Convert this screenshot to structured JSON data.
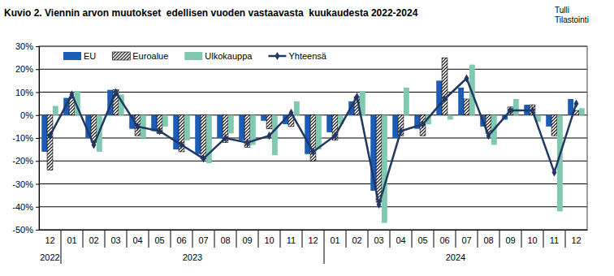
{
  "chart_data": {
    "type": "bar",
    "title": "Kuvio 2. Viennin arvon muutokset  edellisen vuoden vastaavasta  kuukaudesta 2022-2024",
    "source": [
      "Tulli",
      "Tilastointi"
    ],
    "categories": [
      "12",
      "01",
      "02",
      "03",
      "04",
      "05",
      "06",
      "07",
      "08",
      "09",
      "10",
      "11",
      "12",
      "01",
      "02",
      "03",
      "04",
      "05",
      "06",
      "07",
      "08",
      "09",
      "10",
      "11",
      "12"
    ],
    "category_years": [
      "2022",
      "2023",
      "2023",
      "2023",
      "2023",
      "2023",
      "2023",
      "2023",
      "2023",
      "2023",
      "2023",
      "2023",
      "2023",
      "2024",
      "2024",
      "2024",
      "2024",
      "2024",
      "2024",
      "2024",
      "2024",
      "2024",
      "2024",
      "2024",
      "2024"
    ],
    "series": [
      {
        "name": "EU",
        "type": "bar",
        "color": "#1a5cb8",
        "values": [
          -16,
          7.5,
          -10,
          11,
          -6,
          -7,
          -15,
          -17,
          -10,
          -11,
          -2.5,
          -4,
          -17,
          -7.5,
          6,
          -33,
          -10,
          -6,
          15,
          12,
          -5,
          -2,
          4.5,
          -5,
          7
        ]
      },
      {
        "name": "Euroalue",
        "type": "bar",
        "color": "#000000",
        "marker": "hatch",
        "values": [
          -24,
          8,
          -12,
          11,
          -9,
          -8,
          -16,
          -19,
          -12,
          -14,
          -6,
          -5,
          -20,
          -11,
          8,
          -38,
          -9,
          -9,
          25,
          7,
          -8,
          3.5,
          4.5,
          -9,
          2
        ]
      },
      {
        "name": "Ulkokauppa",
        "type": "bar",
        "color": "#7fc9b0",
        "values": [
          4,
          10.5,
          -16,
          9,
          -10,
          -5,
          -11,
          -21,
          -8,
          -13,
          -17.5,
          6,
          -15,
          -4,
          10.5,
          -47,
          12,
          -4,
          -2,
          22,
          -13,
          7,
          -3,
          -42,
          3
        ]
      },
      {
        "name": "Yhteensä",
        "type": "line",
        "color": "#1f3864",
        "marker": "diamond",
        "line_style": "solid",
        "values": [
          -9,
          9,
          -13,
          10,
          -5,
          -7,
          -13,
          -19,
          -10,
          -12,
          -9,
          1,
          -16,
          -9,
          8,
          -39,
          -7,
          -4,
          7,
          16,
          -9,
          2,
          2,
          -25,
          5
        ]
      }
    ],
    "ylim": [
      -50,
      30
    ],
    "yticks": [
      {
        "value": -50,
        "label": "-50%"
      },
      {
        "value": -40,
        "label": "-40%"
      },
      {
        "value": -30,
        "label": "-30%"
      },
      {
        "value": -20,
        "label": "-20%"
      },
      {
        "value": -10,
        "label": "-10%"
      },
      {
        "value": 0,
        "label": "0%"
      },
      {
        "value": 10,
        "label": "10%"
      },
      {
        "value": 20,
        "label": "20%"
      },
      {
        "value": 30,
        "label": "30%"
      }
    ],
    "grid": true,
    "legend": "top-left"
  }
}
